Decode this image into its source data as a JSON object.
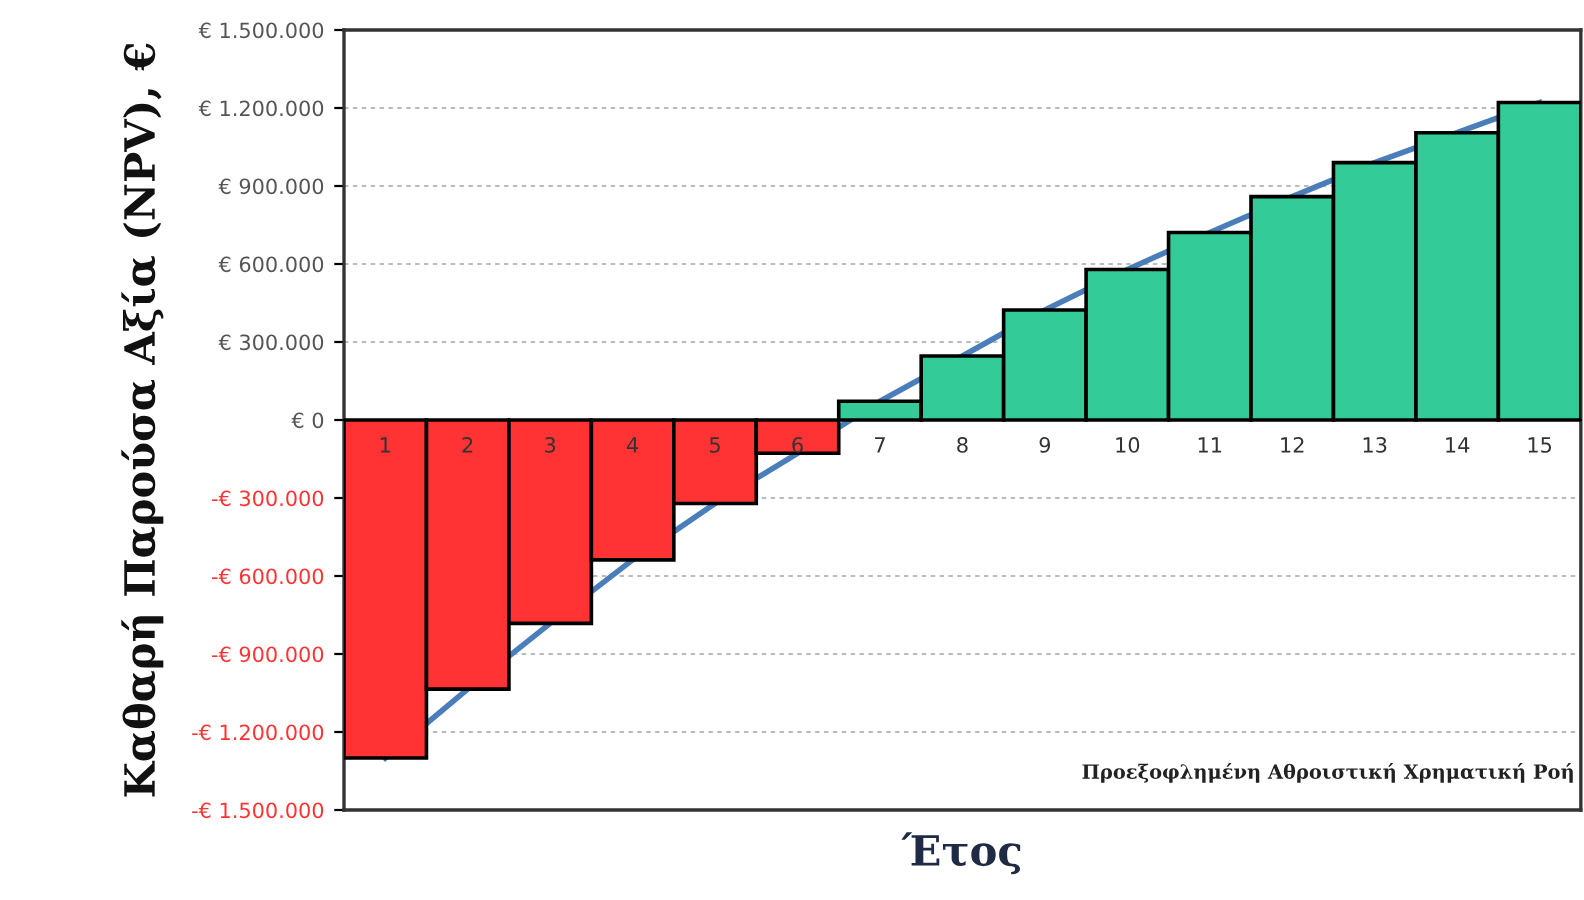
{
  "chart_data": {
    "type": "bar",
    "xlabel": "Έτος",
    "ylabel": "Καθαρή Παρούσα Αξία (NPV), €",
    "categories": [
      "1",
      "2",
      "3",
      "4",
      "5",
      "6",
      "7",
      "8",
      "9",
      "10",
      "11",
      "12",
      "13",
      "14",
      "15"
    ],
    "series": [
      {
        "type": "line",
        "color": "#4a7ebb",
        "values": [
          -1300000,
          -1035000,
          -782000,
          -538000,
          -321000,
          -128000,
          72000,
          246000,
          423000,
          579000,
          721000,
          859000,
          990000,
          1105000,
          1221000
        ]
      },
      {
        "colors": [
          "#ff3333",
          "#ff3333",
          "#ff3333",
          "#ff3333",
          "#ff3333",
          "#ff3333",
          "#33cc99",
          "#33cc99",
          "#33cc99",
          "#33cc99",
          "#33cc99",
          "#33cc99",
          "#33cc99",
          "#33cc99",
          "#33cc99"
        ],
        "values": [
          -1300000,
          -1035000,
          -782000,
          -538000,
          -321000,
          -128000,
          72000,
          246000,
          423000,
          579000,
          721000,
          859000,
          990000,
          1105000,
          1221000
        ]
      }
    ],
    "ylim": [
      -1500000,
      1500000
    ],
    "yticks": [
      {
        "value": -1500000,
        "label": "-€ 1.500.000"
      },
      {
        "value": -1200000,
        "label": "-€ 1.200.000"
      },
      {
        "value": -900000,
        "label": "-€ 900.000"
      },
      {
        "value": -600000,
        "label": "-€ 600.000"
      },
      {
        "value": -300000,
        "label": "-€ 300.000"
      },
      {
        "value": 0,
        "label": "€ 0"
      },
      {
        "value": 300000,
        "label": "€ 300.000"
      },
      {
        "value": 600000,
        "label": "€ 600.000"
      },
      {
        "value": 900000,
        "label": "€ 900.000"
      },
      {
        "value": 1200000,
        "label": "€ 1.200.000"
      },
      {
        "value": 1500000,
        "label": "€ 1.500.000"
      }
    ],
    "grid": "y",
    "annotations": [
      "Προεξοφλημένη Αθροιστική Χρηματική Ροή"
    ]
  }
}
